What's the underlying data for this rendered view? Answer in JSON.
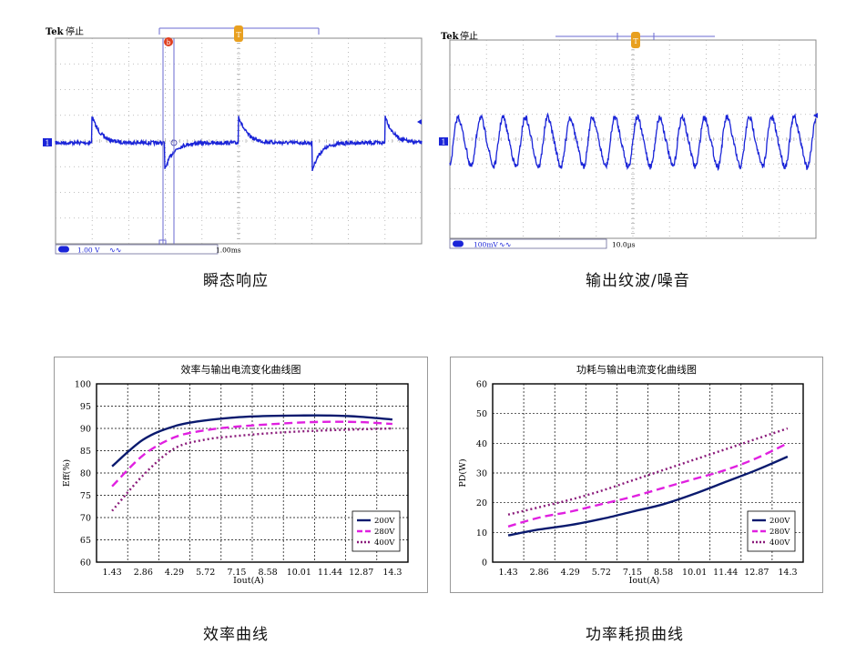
{
  "captions": {
    "scope1": "瞬态响应",
    "scope2": "输出纹波/噪音",
    "eff": "效率曲线",
    "pd": "功率耗损曲线"
  },
  "scope1": {
    "brand": "Tek",
    "status": "停止",
    "channel": "1",
    "channel_scale": "1.00 V",
    "timebase": "1.00ms",
    "cursor_label": "b",
    "trigger_label": "T",
    "trace_color": "#1a24d8"
  },
  "scope2": {
    "brand": "Tek",
    "status": "停止",
    "channel": "1",
    "channel_scale": "100mV",
    "timebase": "10.0µs",
    "trigger_label": "T",
    "trace_color": "#1a24d8"
  },
  "chart_data": [
    {
      "type": "line",
      "title": "效率与输出电流变化曲线图",
      "xlabel": "Iout(A)",
      "ylabel": "Eff(%)",
      "x": [
        1.43,
        2.86,
        4.29,
        5.72,
        7.15,
        8.58,
        10.01,
        11.44,
        12.87,
        14.3
      ],
      "x_tick_labels": [
        "1.43",
        "2.86",
        "4.29",
        "5.72",
        "7.15",
        "8.58",
        "10.01",
        "11.44",
        "12.87",
        "14.3"
      ],
      "ylim": [
        60,
        100
      ],
      "y_ticks": [
        60,
        65,
        70,
        75,
        80,
        85,
        90,
        95,
        100
      ],
      "grid": true,
      "legend": "bottom-right",
      "series": [
        {
          "name": "200V",
          "color": "#0a1a6e",
          "style": "solid",
          "values": [
            81.5,
            87.5,
            90.5,
            91.8,
            92.5,
            92.8,
            92.9,
            92.9,
            92.6,
            92.0
          ]
        },
        {
          "name": "280V",
          "color": "#e020e0",
          "style": "dashed",
          "values": [
            77.0,
            84.0,
            88.0,
            89.6,
            90.4,
            90.9,
            91.3,
            91.5,
            91.4,
            91.0
          ]
        },
        {
          "name": "400V",
          "color": "#8a1a7a",
          "style": "dotted",
          "values": [
            71.5,
            79.5,
            85.5,
            87.5,
            88.3,
            88.9,
            89.3,
            89.6,
            89.8,
            90.0
          ]
        }
      ]
    },
    {
      "type": "line",
      "title": "功耗与输出电流变化曲线图",
      "xlabel": "Iout(A)",
      "ylabel": "PD(W)",
      "x": [
        1.43,
        2.86,
        4.29,
        5.72,
        7.15,
        8.58,
        10.01,
        11.44,
        12.87,
        14.3
      ],
      "x_tick_labels": [
        "1.43",
        "2.86",
        "4.29",
        "5.72",
        "7.15",
        "8.58",
        "10.01",
        "11.44",
        "12.87",
        "14.3"
      ],
      "ylim": [
        0,
        60
      ],
      "y_ticks": [
        0,
        10,
        20,
        30,
        40,
        50,
        60
      ],
      "grid": true,
      "legend": "bottom-right",
      "series": [
        {
          "name": "200V",
          "color": "#0a1a6e",
          "style": "solid",
          "values": [
            9.0,
            11.0,
            12.5,
            14.5,
            17.0,
            19.5,
            23.0,
            27.0,
            31.0,
            35.5
          ]
        },
        {
          "name": "280V",
          "color": "#e020e0",
          "style": "dashed",
          "values": [
            12.0,
            15.0,
            17.0,
            19.5,
            22.0,
            25.0,
            28.0,
            31.0,
            35.0,
            40.0
          ]
        },
        {
          "name": "400V",
          "color": "#8a1a7a",
          "style": "dotted",
          "values": [
            16.0,
            18.5,
            21.0,
            24.0,
            27.5,
            31.0,
            34.5,
            38.0,
            41.5,
            45.0
          ]
        }
      ]
    }
  ]
}
